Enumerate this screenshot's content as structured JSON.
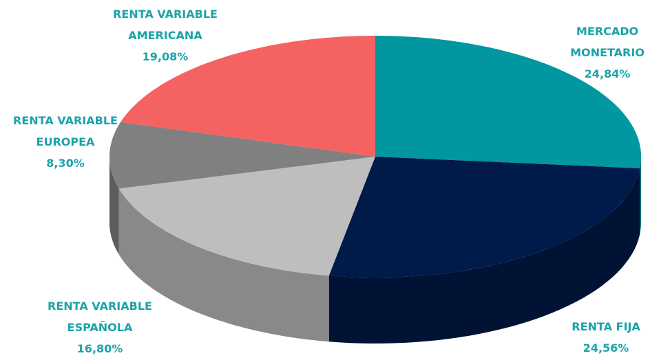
{
  "chart_data": {
    "type": "pie3d",
    "categories": [
      "MERCADO MONETARIO",
      "RENTA FIJA",
      "RENTA VARIABLE ESPAÑOLA",
      "RENTA VARIABLE EUROPEA",
      "RENTA VARIABLE AMERICANA"
    ],
    "values": [
      24.84,
      24.56,
      16.8,
      8.3,
      19.08
    ],
    "value_labels": [
      "24,84%",
      "24,56%",
      "16,80%",
      "8,30%",
      "19,08%"
    ],
    "colors": [
      "#0097a0",
      "#001a4a",
      "#bebebe",
      "#808080",
      "#f46262"
    ],
    "label_color": "#1ba3a9"
  }
}
